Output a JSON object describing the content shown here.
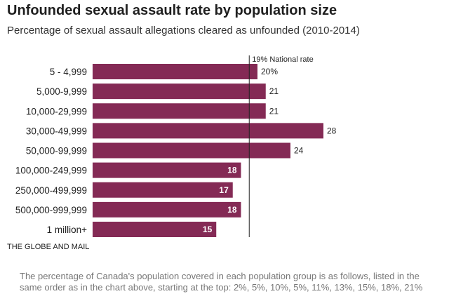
{
  "header": {
    "title": "Unfounded sexual assault rate by population size",
    "subtitle": "Percentage of sexual assault allegations cleared as unfounded (2010-2014)"
  },
  "source": "THE GLOBE AND MAIL",
  "note": "The percentage of Canada's population covered in each population group is as follows, listed in the same order as in the chart above, starting at the top: 2%, 5%, 10%, 5%, 11%, 13%, 15%, 18%, 21%",
  "colors": {
    "bar": "#842a55",
    "label_inside": "#ffffff",
    "label_outside": "#222222",
    "reference_line": "#222222"
  },
  "chart_data": {
    "type": "bar",
    "orientation": "horizontal",
    "title": "Unfounded sexual assault rate by population size",
    "subtitle": "Percentage of sexual assault allegations cleared as unfounded (2010-2014)",
    "categories": [
      "5 - 4,999",
      "5,000-9,999",
      "10,000-29,999",
      "30,000-49,999",
      "50,000-99,999",
      "100,000-249,999",
      "250,000-499,999",
      "500,000-999,999",
      "1 million+"
    ],
    "values": [
      20,
      21,
      21,
      28,
      24,
      18,
      17,
      18,
      15
    ],
    "value_labels": [
      "20%",
      "21",
      "21",
      "28",
      "24",
      "18",
      "17",
      "18",
      "15"
    ],
    "label_position": [
      "outside",
      "outside",
      "outside",
      "outside",
      "outside",
      "inside",
      "inside",
      "inside",
      "inside"
    ],
    "xlim": [
      0,
      28
    ],
    "grid": false,
    "reference_line": {
      "value": 19,
      "label": "19% National rate"
    }
  }
}
